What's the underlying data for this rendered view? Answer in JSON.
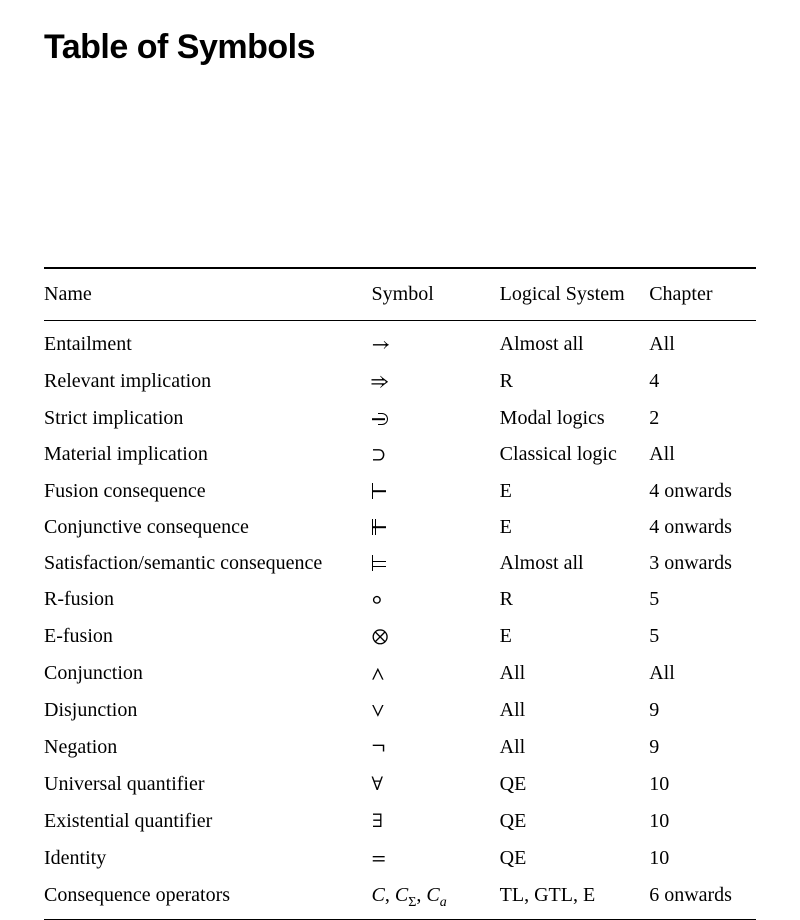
{
  "title": "Table of Symbols",
  "columns": {
    "name": "Name",
    "symbol": "Symbol",
    "system": "Logical System",
    "chapter": "Chapter"
  },
  "rows": [
    {
      "name": "Entailment",
      "symbol_kind": "glyph",
      "symbol": "→",
      "system": "Almost all",
      "chapter": "All"
    },
    {
      "name": "Relevant implication",
      "symbol_kind": "glyph",
      "symbol": "⇒",
      "system": "R",
      "chapter": "4"
    },
    {
      "name": "Strict implication",
      "symbol_kind": "strict",
      "symbol": "",
      "system": "Modal logics",
      "chapter": "2"
    },
    {
      "name": "Material implication",
      "symbol_kind": "glyph",
      "symbol": "⊃",
      "system": "Classical logic",
      "chapter": "All"
    },
    {
      "name": "Fusion consequence",
      "symbol_kind": "turnstile",
      "symbol": "",
      "system": "E",
      "chapter": "4 onwards"
    },
    {
      "name": "Conjunctive consequence",
      "symbol_kind": "dturnstile",
      "symbol": "",
      "system": "E",
      "chapter": "4 onwards"
    },
    {
      "name": "Satisfaction/semantic consequence",
      "symbol_kind": "models",
      "symbol": "",
      "system": "Almost all",
      "chapter": "3 onwards"
    },
    {
      "name": "R-fusion",
      "symbol_kind": "glyph",
      "symbol": "◦",
      "system": "R",
      "chapter": "5"
    },
    {
      "name": "E-fusion",
      "symbol_kind": "glyph",
      "symbol": "⊗",
      "system": "E",
      "chapter": "5"
    },
    {
      "name": "Conjunction",
      "symbol_kind": "glyph",
      "symbol": "∧",
      "system": "All",
      "chapter": "All"
    },
    {
      "name": "Disjunction",
      "symbol_kind": "glyph",
      "symbol": "∨",
      "system": "All",
      "chapter": "9"
    },
    {
      "name": "Negation",
      "symbol_kind": "glyph",
      "symbol": "¬",
      "system": "All",
      "chapter": "9"
    },
    {
      "name": "Universal quantifier",
      "symbol_kind": "glyph",
      "symbol": "∀",
      "system": "QE",
      "chapter": "10"
    },
    {
      "name": "Existential quantifier",
      "symbol_kind": "glyph",
      "symbol": "∃",
      "system": "QE",
      "chapter": "10"
    },
    {
      "name": "Identity",
      "symbol_kind": "glyph",
      "symbol": "=",
      "system": "QE",
      "chapter": "10"
    },
    {
      "name": "Consequence operators",
      "symbol_kind": "conseq",
      "symbol": "",
      "system": "TL, GTL, E",
      "chapter": "6 onwards"
    }
  ],
  "conseq_parts": {
    "c": "C",
    "sigma": "Σ",
    "a": "a"
  }
}
